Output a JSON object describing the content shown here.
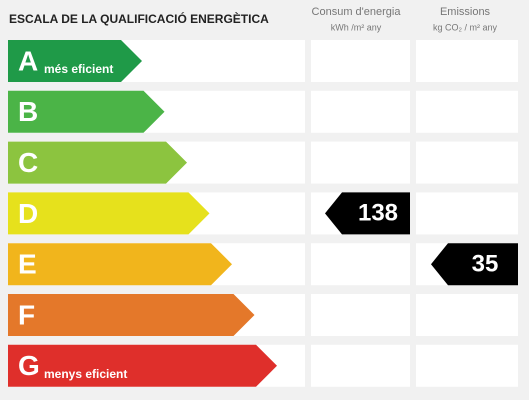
{
  "header": {
    "title": "ESCALA DE LA QUALIFICACIÓ ENERGÈTICA",
    "columns": [
      {
        "title": "Consum d'energia",
        "unit": "kWh /m² any"
      },
      {
        "title": "Emissions",
        "unit": "kg CO₂ / m² any"
      }
    ]
  },
  "rows": [
    {
      "letter": "A",
      "label": "més eficient",
      "color": "#1f9a48"
    },
    {
      "letter": "B",
      "color": "#4bb447"
    },
    {
      "letter": "C",
      "color": "#8cc43f"
    },
    {
      "letter": "D",
      "color": "#e6e11c",
      "energy": 138
    },
    {
      "letter": "E",
      "color": "#f1b51c",
      "emissions": 35
    },
    {
      "letter": "F",
      "color": "#e4782a"
    },
    {
      "letter": "G",
      "label": "menys eficient",
      "color": "#df2f2b"
    }
  ]
}
